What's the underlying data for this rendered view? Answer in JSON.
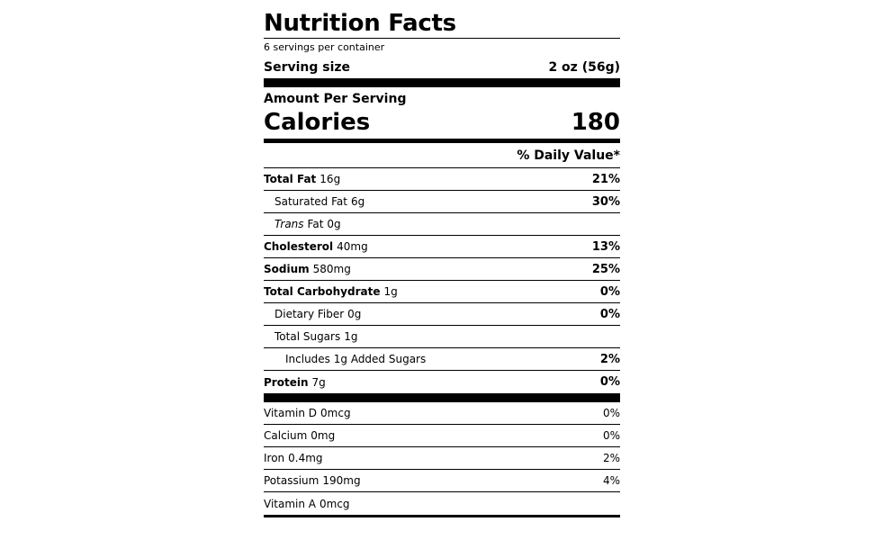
{
  "header": {
    "title": "Nutrition Facts",
    "servings": "6 servings per container",
    "serving_size_label": "Serving size",
    "serving_size_value": "2 oz (56g)"
  },
  "calories": {
    "amount_label": "Amount Per Serving",
    "label": "Calories",
    "value": "180"
  },
  "daily_value_header": "% Daily Value*",
  "nutrients": [
    {
      "name": "Total Fat",
      "amount": "16g",
      "dv": "21%"
    },
    {
      "name": "Saturated Fat",
      "amount": "6g",
      "dv": "30%"
    },
    {
      "name_prefix": "Trans",
      "name": "Fat",
      "amount": "0g"
    },
    {
      "name": "Cholesterol",
      "amount": "40mg",
      "dv": "13%"
    },
    {
      "name": "Sodium",
      "amount": "580mg",
      "dv": "25%"
    },
    {
      "name": "Total Carbohydrate",
      "amount": "1g",
      "dv": "0%"
    },
    {
      "name": "Dietary Fiber",
      "amount": "0g",
      "dv": "0%"
    },
    {
      "name": "Total Sugars",
      "amount": "1g"
    },
    {
      "name": "Includes 1g Added Sugars",
      "dv": "2%"
    },
    {
      "name": "Protein",
      "amount": "7g",
      "dv": "0%"
    }
  ],
  "vitamins": [
    {
      "name": "Vitamin D",
      "amount": "0mcg",
      "dv": "0%"
    },
    {
      "name": "Calcium",
      "amount": "0mg",
      "dv": "0%"
    },
    {
      "name": "Iron",
      "amount": "0.4mg",
      "dv": "2%"
    },
    {
      "name": "Potassium",
      "amount": "190mg",
      "dv": "4%"
    },
    {
      "name": "Vitamin A",
      "amount": "0mcg"
    }
  ]
}
